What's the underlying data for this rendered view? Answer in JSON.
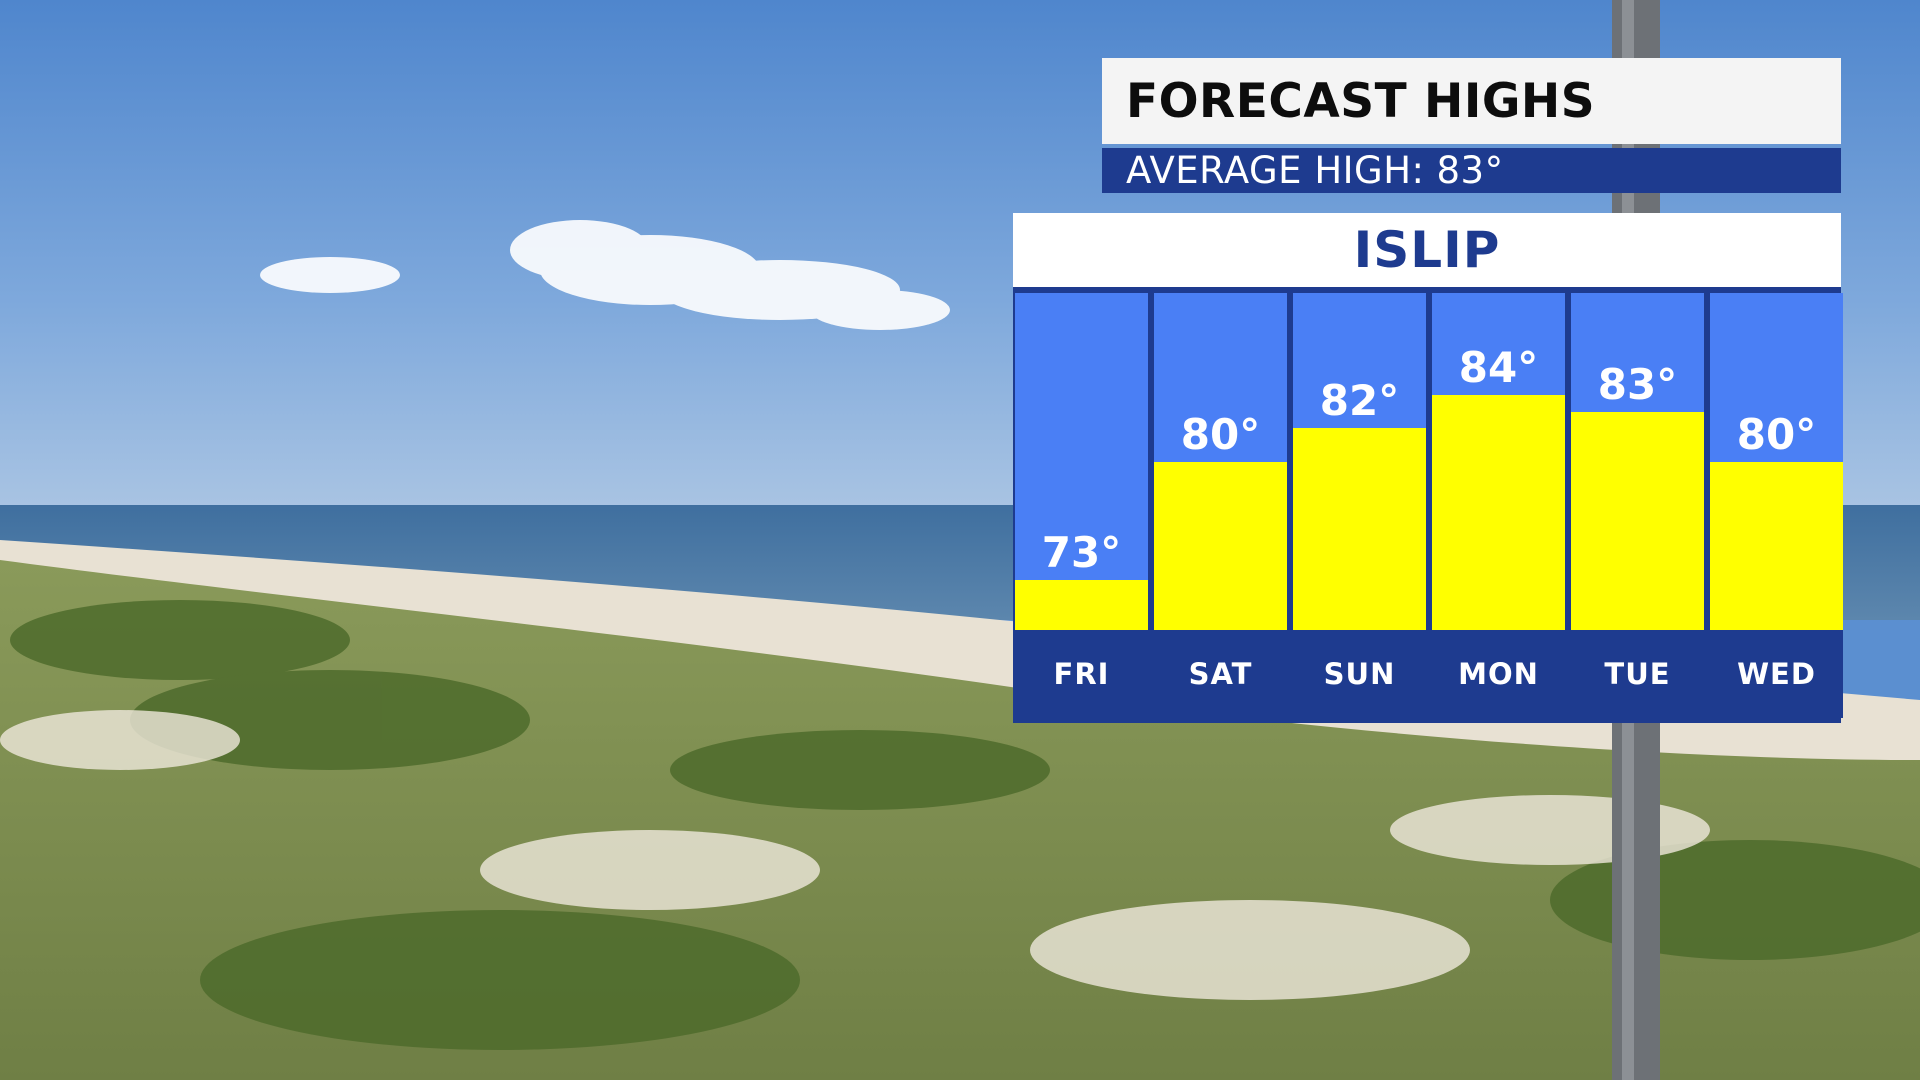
{
  "header": {
    "title": "FORECAST HIGHS",
    "average_label": "AVERAGE HIGH:",
    "average_value": "83°"
  },
  "location": "ISLIP",
  "colors": {
    "panel_navy": "#1e3b8f",
    "column_blue": "#4a7ff5",
    "bar_yellow": "#ffff00",
    "title_bg": "#f4f4f4"
  },
  "chart_data": {
    "type": "bar",
    "title": "FORECAST HIGHS",
    "categories": [
      "FRI",
      "SAT",
      "SUN",
      "MON",
      "TUE",
      "WED"
    ],
    "values": [
      73,
      80,
      82,
      84,
      83,
      80
    ],
    "labels": [
      "73°",
      "80°",
      "82°",
      "84°",
      "83°",
      "80°"
    ],
    "unit": "°F",
    "ylim": [
      70,
      94
    ],
    "grid": false
  }
}
